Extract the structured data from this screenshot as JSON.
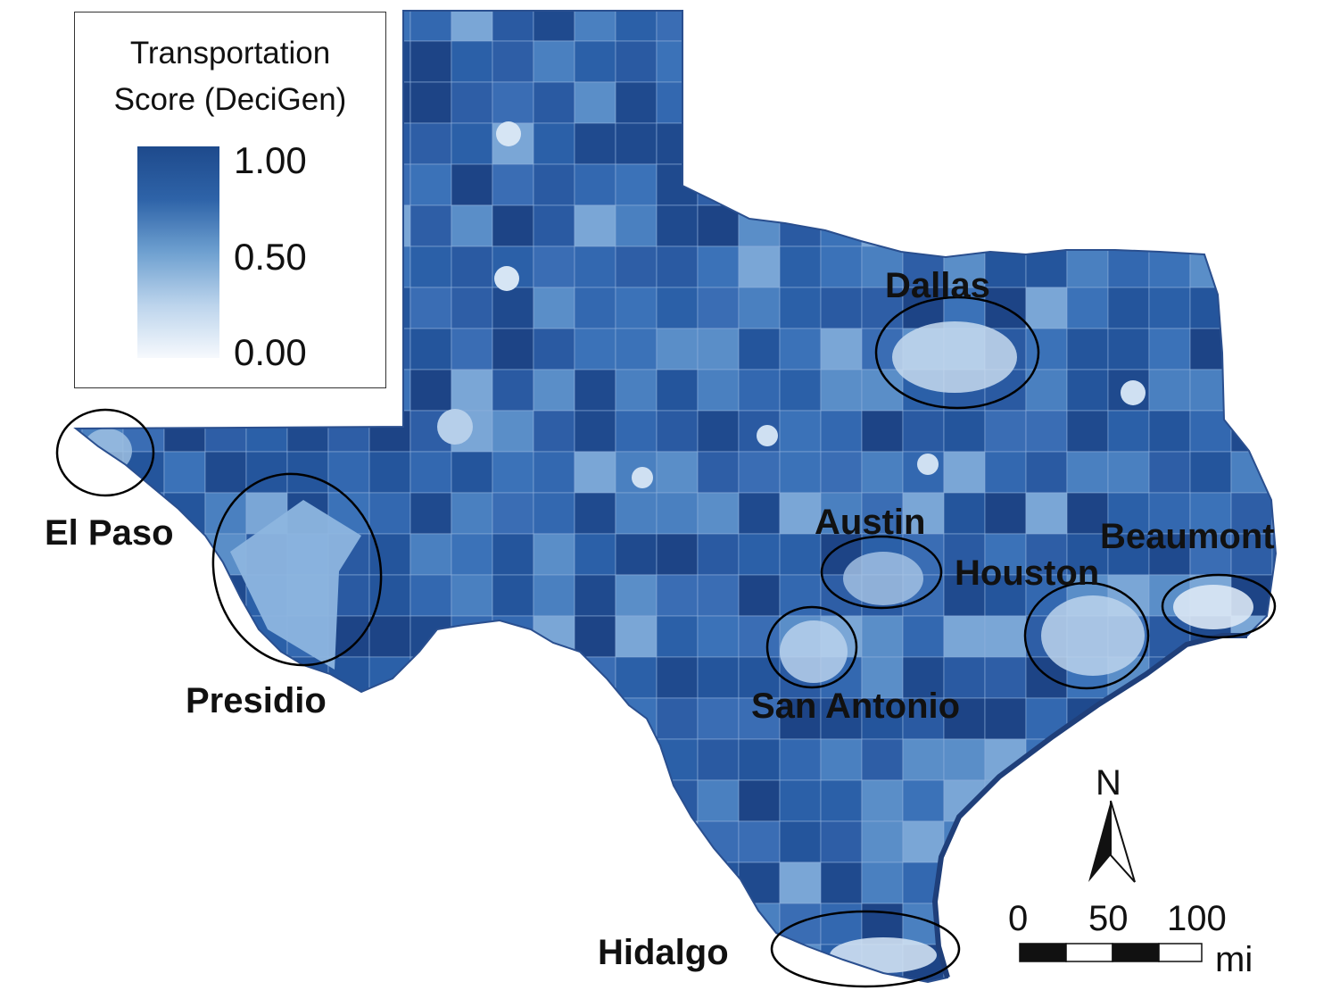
{
  "legend": {
    "title_line1": "Transportation",
    "title_line2": "Score (DeciGen)",
    "ticks": [
      "1.00",
      "0.50",
      "0.00"
    ],
    "color_high": "#1e4a8c",
    "color_mid": "#6ea0d0",
    "color_low": "#f6f9fd"
  },
  "regions": [
    {
      "id": "el-paso",
      "label": "El Paso"
    },
    {
      "id": "presidio",
      "label": "Presidio"
    },
    {
      "id": "dallas",
      "label": "Dallas"
    },
    {
      "id": "austin",
      "label": "Austin"
    },
    {
      "id": "houston",
      "label": "Houston"
    },
    {
      "id": "beaumont",
      "label": "Beaumont"
    },
    {
      "id": "san-antonio",
      "label": "San Antonio"
    },
    {
      "id": "hidalgo",
      "label": "Hidalgo"
    }
  ],
  "north_arrow": {
    "label": "N"
  },
  "scale_bar": {
    "ticks": [
      "0",
      "50",
      "100"
    ],
    "unit": "mi"
  },
  "colors": {
    "state_fill": "#3566ad",
    "coast": "#1f3f7a"
  }
}
